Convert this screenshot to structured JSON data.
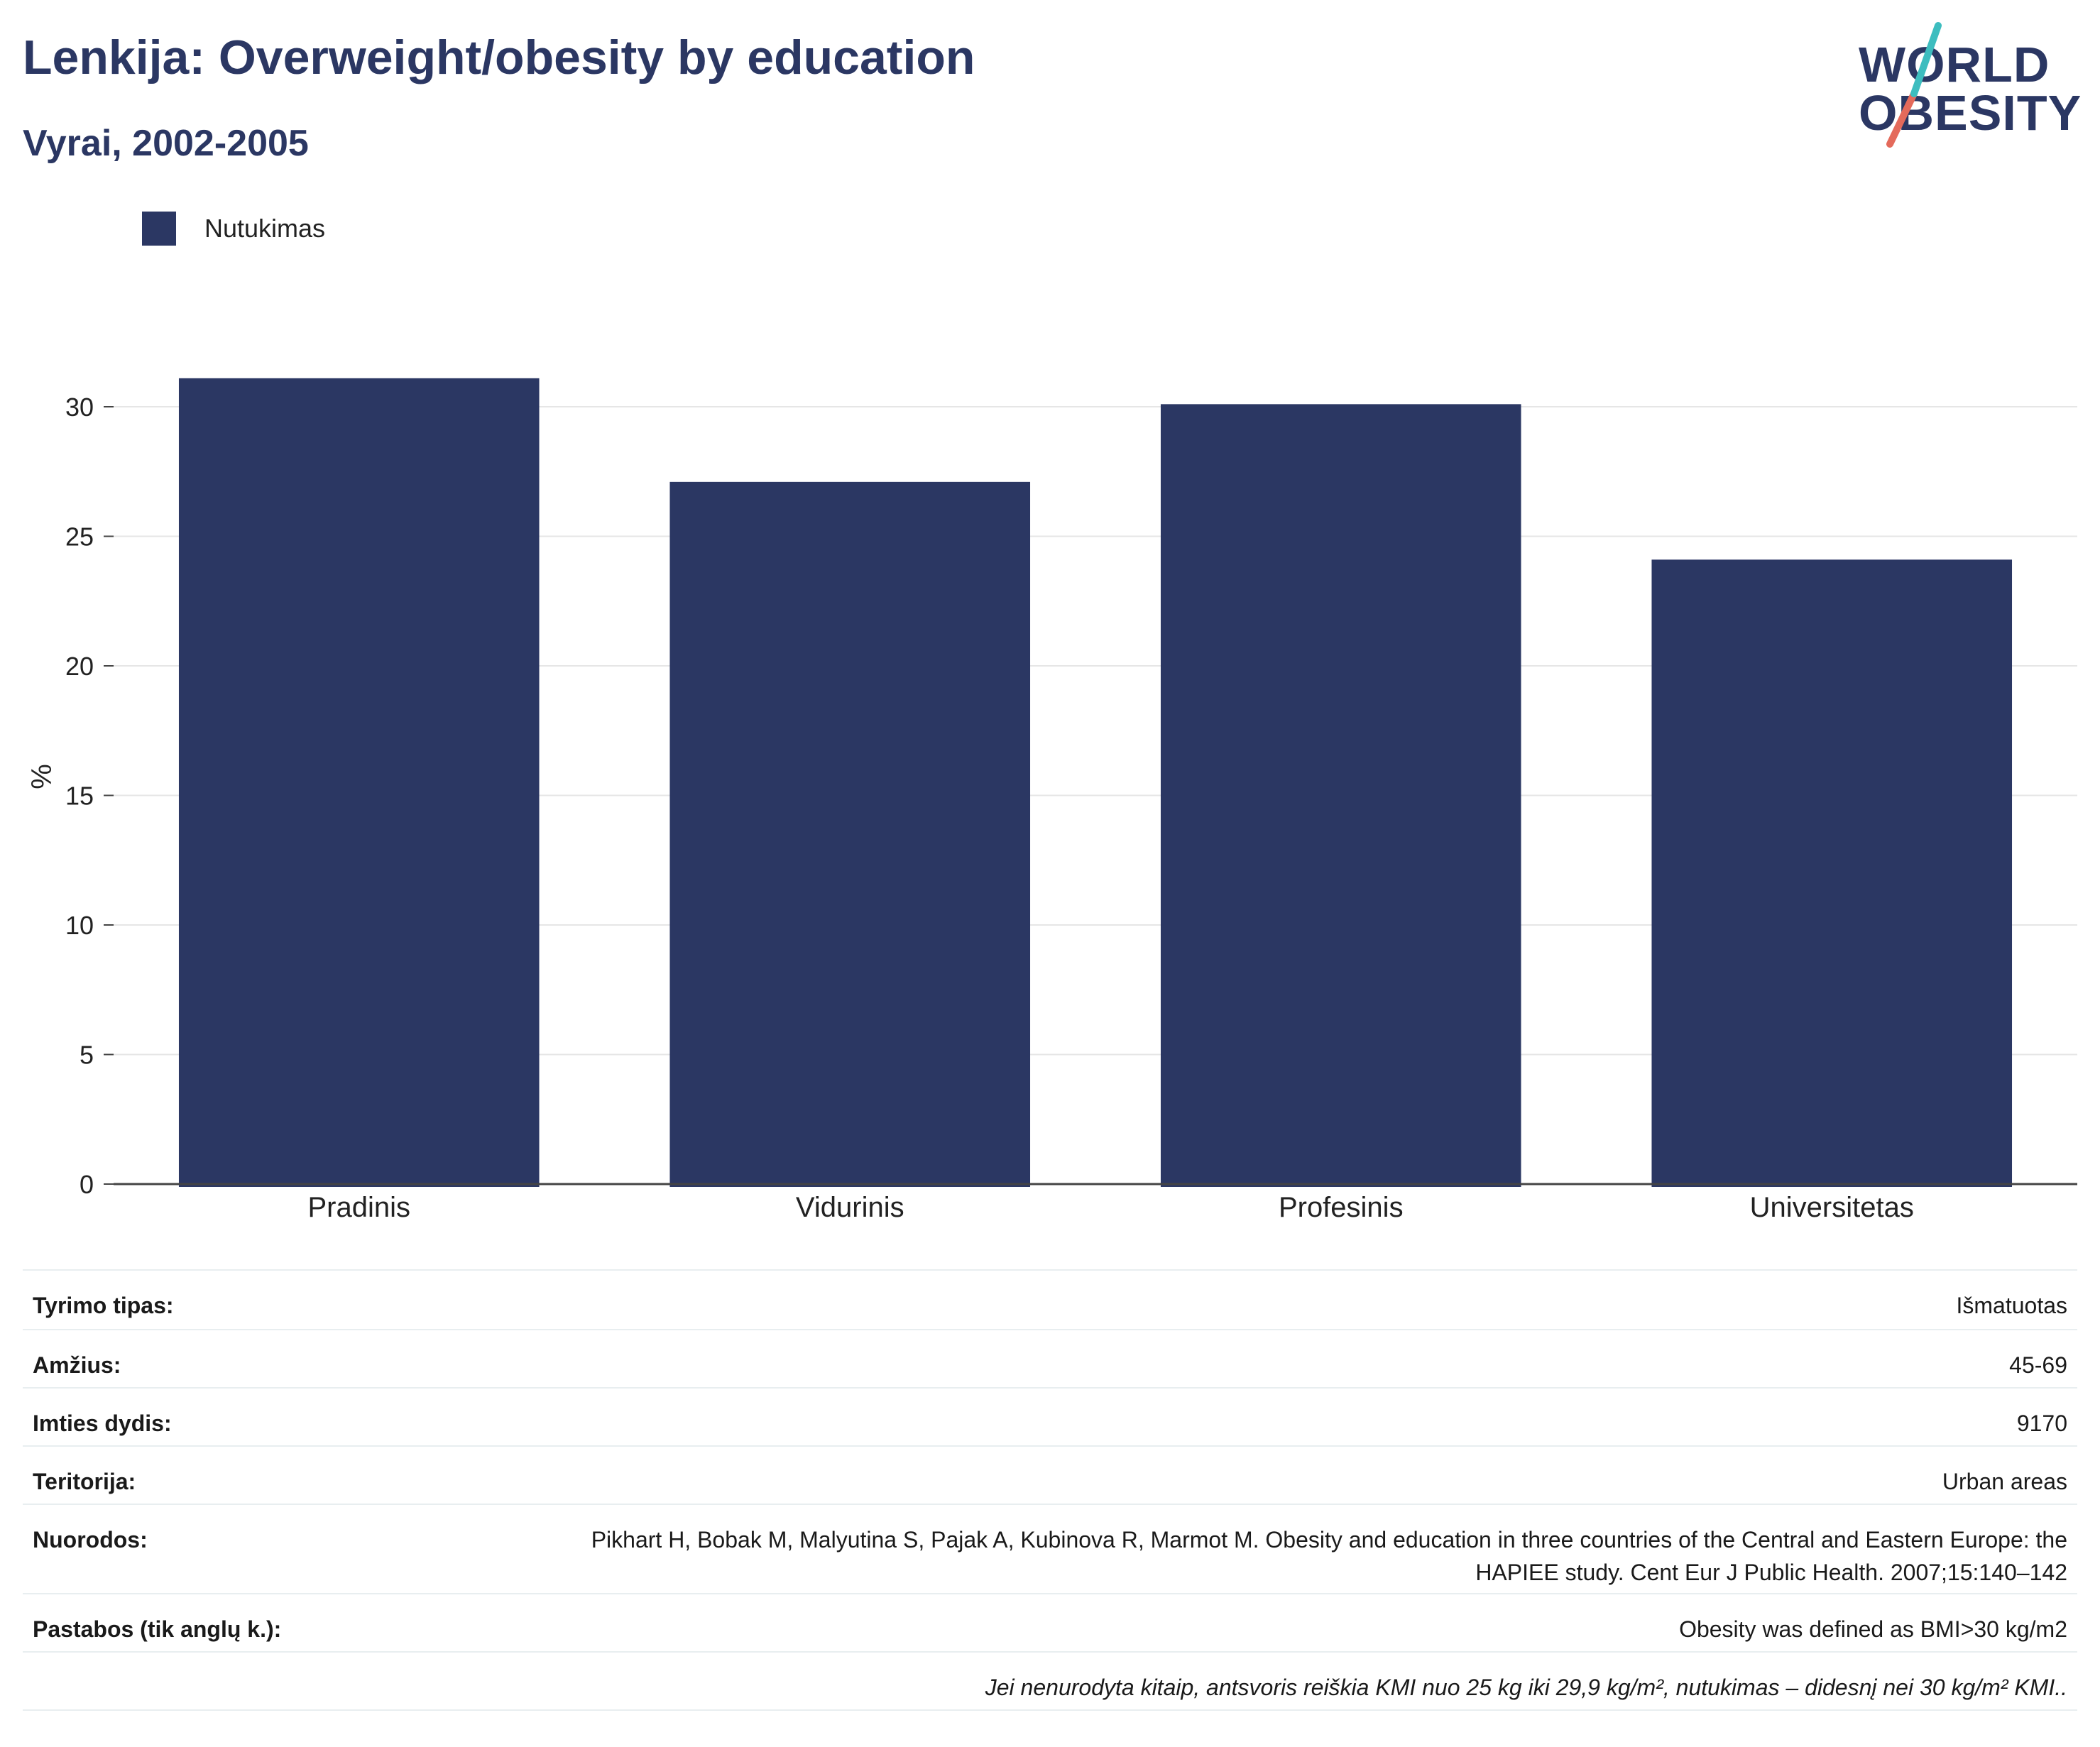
{
  "header": {
    "title": "Lenkija: Overweight/obesity by education",
    "subtitle": "Vyrai, 2002-2005"
  },
  "logo": {
    "line1": "WORLD",
    "line2": "OBESITY",
    "colors": {
      "navy": "#2b3763",
      "teal": "#3dbdbf",
      "coral": "#e46a5b"
    }
  },
  "chart_data": {
    "type": "bar",
    "categories": [
      "Pradinis",
      "Vidurinis",
      "Profesinis",
      "Universitetas"
    ],
    "series": [
      {
        "name": "Nutukimas",
        "values": [
          31.1,
          27.1,
          30.1,
          24.1
        ],
        "color": "#2b3763"
      }
    ],
    "title": "",
    "xlabel": "",
    "ylabel": "%",
    "ylim": [
      0,
      32
    ],
    "yticks": [
      0,
      5,
      10,
      15,
      20,
      25,
      30
    ],
    "grid": true,
    "legend": "top-left"
  },
  "info": {
    "rows": [
      {
        "key": "Tyrimo tipas:",
        "value": "Išmatuotas"
      },
      {
        "key": "Amžius:",
        "value": "45-69"
      },
      {
        "key": "Imties dydis:",
        "value": "9170"
      },
      {
        "key": "Teritorija:",
        "value": "Urban areas"
      },
      {
        "key": "Nuorodos:",
        "value": "Pikhart H, Bobak M, Malyutina S, Pajak A, Kubinova R, Marmot M. Obesity and education in three countries of the Central and Eastern Europe: the HAPIEE study. Cent Eur J Public Health. 2007;15:140–142"
      },
      {
        "key": "Pastabos (tik anglų k.):",
        "value": "Obesity was defined as BMI>30 kg/m2"
      }
    ],
    "footnote": "Jei nenurodyta kitaip, antsvoris reiškia KMI nuo 25 kg iki 29,9 kg/m², nutukimas – didesnį nei 30 kg/m² KMI.."
  }
}
